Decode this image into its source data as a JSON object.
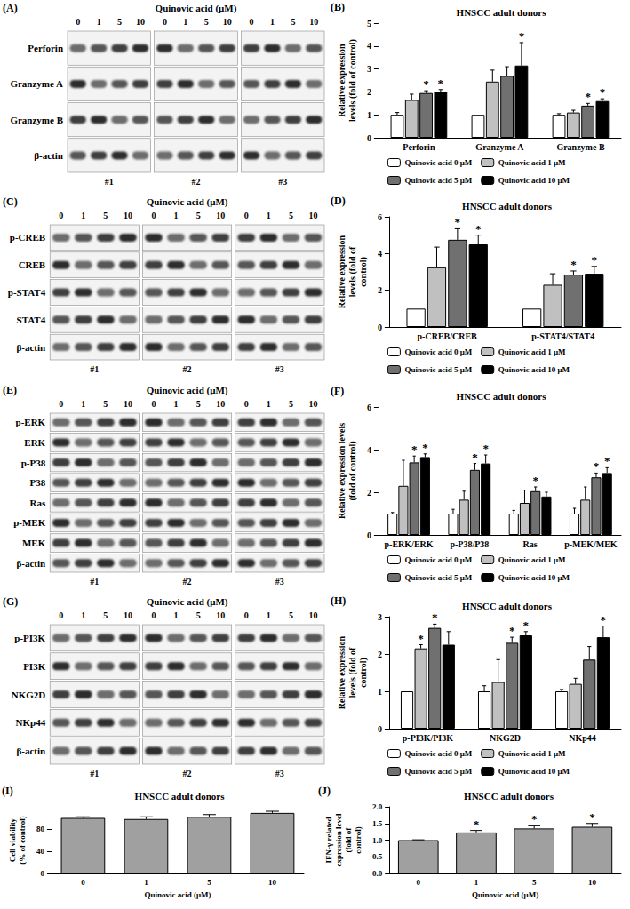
{
  "blots": [
    {
      "panel": "(A)",
      "header": "Quinovic acid (μM)",
      "lanes": [
        "0",
        "1",
        "5",
        "10"
      ],
      "donors": [
        "#1",
        "#2",
        "#3"
      ],
      "rows": [
        "Perforin",
        "Granzyme A",
        "Granzyme B",
        "β-actin"
      ]
    },
    {
      "panel": "(C)",
      "header": "Quinovic acid (μM)",
      "lanes": [
        "0",
        "1",
        "5",
        "10"
      ],
      "donors": [
        "#1",
        "#2",
        "#3"
      ],
      "rows": [
        "p-CREB",
        "CREB",
        "p-STAT4",
        "STAT4",
        "β-actin"
      ]
    },
    {
      "panel": "(E)",
      "header": "Quinovic acid (μM)",
      "lanes": [
        "0",
        "1",
        "5",
        "10"
      ],
      "donors": [
        "#1",
        "#2",
        "#3"
      ],
      "rows": [
        "p-ERK",
        "ERK",
        "p-P38",
        "P38",
        "Ras",
        "p-MEK",
        "MEK",
        "β-actin"
      ]
    },
    {
      "panel": "(G)",
      "header": "Quinovic acid (μM)",
      "lanes": [
        "0",
        "1",
        "5",
        "10"
      ],
      "donors": [
        "#1",
        "#2",
        "#3"
      ],
      "rows": [
        "p-PI3K",
        "PI3K",
        "NKG2D",
        "NKp44",
        "β-actin"
      ]
    }
  ],
  "chart_data": [
    {
      "panel": "(B)",
      "type": "bar",
      "title": "HNSCC adult donors",
      "ylabel": "Relative expression levels (fold of control)",
      "categories": [
        "Perforin",
        "Granzyme A",
        "Granzyme B"
      ],
      "series": [
        {
          "name": "Quinovic acid 0 μM",
          "color": "#ffffff",
          "values": [
            1.0,
            1.0,
            1.0
          ],
          "errors": [
            0.1,
            0.0,
            0.05
          ],
          "significant": [
            false,
            false,
            false
          ]
        },
        {
          "name": "Quinovic acid 1 μM",
          "color": "#c0c0c0",
          "values": [
            1.65,
            2.45,
            1.1
          ],
          "errors": [
            0.25,
            0.5,
            0.1
          ],
          "significant": [
            false,
            false,
            false
          ]
        },
        {
          "name": "Quinovic acid 5 μM",
          "color": "#707070",
          "values": [
            1.95,
            2.7,
            1.4
          ],
          "errors": [
            0.1,
            0.4,
            0.1
          ],
          "significant": [
            true,
            false,
            true
          ]
        },
        {
          "name": "Quinovic acid 10 μM",
          "color": "#000000",
          "values": [
            2.0,
            3.15,
            1.6
          ],
          "errors": [
            0.1,
            1.0,
            0.1
          ],
          "significant": [
            true,
            true,
            true
          ]
        }
      ],
      "significance_label": "*",
      "ylim": [
        0,
        5
      ],
      "yticks": [
        0,
        1,
        2,
        3,
        4,
        5
      ],
      "grid": false,
      "legend": "bottom"
    },
    {
      "panel": "(D)",
      "type": "bar",
      "title": "HNSCC adult donors",
      "ylabel": "Relative expression levels (fold of control)",
      "categories": [
        "p-CREB/CREB",
        "p-STAT4/STAT4"
      ],
      "series": [
        {
          "name": "Quinovic acid 0 μM",
          "color": "#ffffff",
          "values": [
            1.0,
            1.0
          ],
          "errors": [
            0.0,
            0.0
          ],
          "significant": [
            false,
            false
          ]
        },
        {
          "name": "Quinovic acid 1 μM",
          "color": "#c0c0c0",
          "values": [
            3.25,
            2.3
          ],
          "errors": [
            1.1,
            0.6
          ],
          "significant": [
            false,
            false
          ]
        },
        {
          "name": "Quinovic acid 5 μM",
          "color": "#707070",
          "values": [
            4.75,
            2.85
          ],
          "errors": [
            0.6,
            0.2
          ],
          "significant": [
            true,
            true
          ]
        },
        {
          "name": "Quinovic acid 10 μM",
          "color": "#000000",
          "values": [
            4.5,
            2.9
          ],
          "errors": [
            0.5,
            0.4
          ],
          "significant": [
            true,
            true
          ]
        }
      ],
      "significance_label": "*",
      "ylim": [
        0,
        6
      ],
      "yticks": [
        0,
        2,
        4,
        6
      ],
      "grid": false,
      "legend": "bottom"
    },
    {
      "panel": "(F)",
      "type": "bar",
      "title": "HNSCC adult donors",
      "ylabel": "Relative expression levels (fold of control)",
      "categories": [
        "p-ERK/ERK",
        "p-P38/P38",
        "Ras",
        "p-MEK/MEK"
      ],
      "series": [
        {
          "name": "Quinovic acid 0 μM",
          "color": "#ffffff",
          "values": [
            1.0,
            1.0,
            1.0,
            1.0
          ],
          "errors": [
            0.05,
            0.2,
            0.15,
            0.25
          ],
          "significant": [
            false,
            false,
            false,
            false
          ]
        },
        {
          "name": "Quinovic acid 1 μM",
          "color": "#c0c0c0",
          "values": [
            2.3,
            1.65,
            1.5,
            1.65
          ],
          "errors": [
            1.2,
            0.4,
            0.6,
            0.6
          ],
          "significant": [
            false,
            false,
            false,
            false
          ]
        },
        {
          "name": "Quinovic acid 5 μM",
          "color": "#707070",
          "values": [
            3.4,
            3.05,
            2.05,
            2.7
          ],
          "errors": [
            0.3,
            0.3,
            0.2,
            0.2
          ],
          "significant": [
            true,
            true,
            true,
            true
          ]
        },
        {
          "name": "Quinovic acid 10 μM",
          "color": "#000000",
          "values": [
            3.65,
            3.35,
            1.8,
            2.9
          ],
          "errors": [
            0.15,
            0.4,
            0.2,
            0.25
          ],
          "significant": [
            true,
            true,
            false,
            true
          ]
        }
      ],
      "significance_label": "*",
      "ylim": [
        0,
        6
      ],
      "yticks": [
        0,
        2,
        4,
        6
      ],
      "grid": false,
      "legend": "bottom"
    },
    {
      "panel": "(H)",
      "type": "bar",
      "title": "HNSCC adult donors",
      "ylabel": "Relative expression levels (fold of control)",
      "categories": [
        "p-PI3K/PI3K",
        "NKG2D",
        "NKp44"
      ],
      "series": [
        {
          "name": "Quinovic acid 0 μM",
          "color": "#ffffff",
          "values": [
            1.0,
            1.0,
            1.0
          ],
          "errors": [
            0.0,
            0.15,
            0.05
          ],
          "significant": [
            false,
            false,
            false
          ]
        },
        {
          "name": "Quinovic acid 1 μM",
          "color": "#c0c0c0",
          "values": [
            2.15,
            1.25,
            1.2
          ],
          "errors": [
            0.1,
            0.6,
            0.15
          ],
          "significant": [
            true,
            false,
            false
          ]
        },
        {
          "name": "Quinovic acid 5 μM",
          "color": "#707070",
          "values": [
            2.7,
            2.3,
            1.85
          ],
          "errors": [
            0.1,
            0.15,
            0.35
          ],
          "significant": [
            true,
            true,
            false
          ]
        },
        {
          "name": "Quinovic acid 10 μM",
          "color": "#000000",
          "values": [
            2.25,
            2.5,
            2.45
          ],
          "errors": [
            0.35,
            0.1,
            0.3
          ],
          "significant": [
            false,
            true,
            true
          ]
        }
      ],
      "significance_label": "*",
      "ylim": [
        0,
        3
      ],
      "yticks": [
        0,
        1,
        2,
        3
      ],
      "grid": false,
      "legend": "bottom"
    },
    {
      "panel": "(I)",
      "type": "bar",
      "title": "HNSCC adult donors",
      "xlabel": "Quinovic acid (μM)",
      "ylabel": "Cell viability (% of control)",
      "categories": [
        "0",
        "1",
        "5",
        "10"
      ],
      "values": [
        100,
        98,
        102,
        109
      ],
      "errors": [
        2,
        4,
        4,
        3
      ],
      "color": "#a0a0a0",
      "ylim": [
        0,
        120
      ],
      "yticks": [
        0,
        40,
        80
      ],
      "grid": false
    },
    {
      "panel": "(J)",
      "type": "bar",
      "title": "HNSCC adult donors",
      "xlabel": "Quinovic acid (μM)",
      "ylabel": "IFN-γ related expression level (fold of control)",
      "categories": [
        "0",
        "1",
        "5",
        "10"
      ],
      "values": [
        1.0,
        1.23,
        1.35,
        1.4
      ],
      "errors": [
        0.01,
        0.06,
        0.08,
        0.1
      ],
      "significant": [
        false,
        true,
        true,
        true
      ],
      "significance_label": "*",
      "color": "#a0a0a0",
      "ylim": [
        0,
        2
      ],
      "yticks": [
        {
          "value": 0,
          "label": "0.0"
        },
        {
          "value": 0.5,
          "label": "0.5"
        },
        {
          "value": 1,
          "label": "1.0"
        },
        {
          "value": 1.5,
          "label": "1.5"
        },
        {
          "value": 2,
          "label": "2.0"
        }
      ],
      "grid": false
    }
  ]
}
